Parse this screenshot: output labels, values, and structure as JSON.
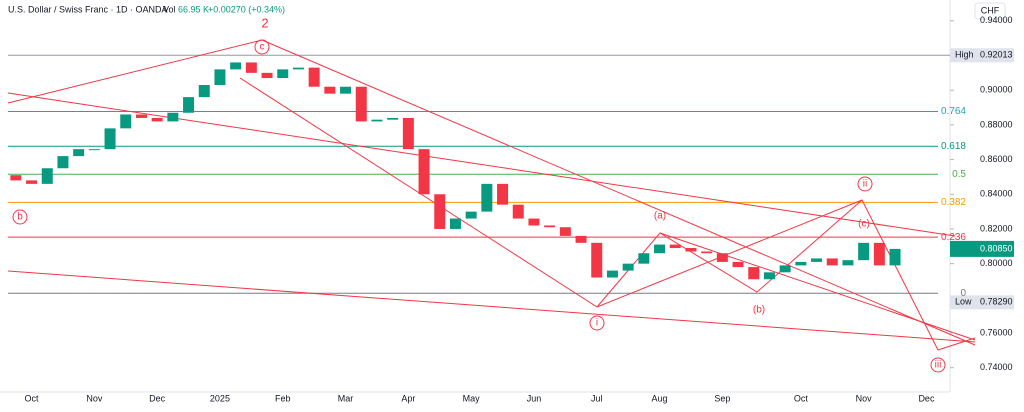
{
  "header": {
    "symbol": "U.S. Dollar / Swiss Franc · 1D · OANDA",
    "vol_label": "Vol",
    "vol": "66.95 K",
    "change": "+0.00270 (+0.34%)",
    "currency": "CHF"
  },
  "chart_data": {
    "type": "candlestick",
    "categories": [
      null,
      "Oct",
      null,
      null,
      null,
      "Nov",
      null,
      null,
      null,
      "Dec",
      null,
      null,
      null,
      "2025",
      null,
      null,
      null,
      "Feb",
      null,
      null,
      null,
      "Mar",
      null,
      null,
      null,
      "Apr",
      null,
      null,
      null,
      "May",
      null,
      null,
      null,
      "Jun",
      null,
      null,
      null,
      "Jul",
      null,
      null,
      null,
      "Aug",
      null,
      null,
      null,
      "Sep",
      null,
      null,
      null,
      null,
      "Oct",
      null,
      null,
      null,
      "Nov",
      null,
      null,
      null,
      "Dec",
      null
    ],
    "open": [
      0.851,
      0.848,
      0.846,
      0.855,
      0.862,
      0.866,
      0.866,
      0.878,
      0.886,
      0.884,
      0.882,
      0.887,
      0.896,
      0.903,
      0.912,
      0.916,
      0.91,
      0.907,
      0.912,
      0.913,
      0.902,
      0.898,
      0.902,
      0.882,
      0.883,
      0.884,
      0.866,
      0.84,
      0.82,
      0.826,
      0.83,
      0.846,
      0.834,
      0.826,
      0.822,
      0.821,
      0.816,
      0.812,
      0.792,
      0.796,
      0.8,
      0.806,
      0.811,
      0.809,
      0.807,
      0.806,
      0.801,
      0.798,
      0.791,
      0.795,
      0.799,
      0.801,
      0.803,
      0.799,
      0.802,
      0.812,
      0.799,
      null,
      null,
      null
    ],
    "close": [
      0.848,
      0.846,
      0.855,
      0.862,
      0.866,
      0.866,
      0.878,
      0.886,
      0.884,
      0.882,
      0.887,
      0.896,
      0.903,
      0.912,
      0.916,
      0.91,
      0.907,
      0.912,
      0.913,
      0.902,
      0.898,
      0.902,
      0.882,
      0.883,
      0.884,
      0.866,
      0.84,
      0.82,
      0.826,
      0.83,
      0.846,
      0.834,
      0.826,
      0.822,
      0.821,
      0.816,
      0.812,
      0.792,
      0.796,
      0.8,
      0.806,
      0.811,
      0.809,
      0.807,
      0.806,
      0.801,
      0.798,
      0.791,
      0.795,
      0.799,
      0.801,
      0.803,
      0.799,
      0.802,
      0.812,
      0.799,
      0.8085,
      null,
      null,
      null
    ],
    "up_color": "#089981",
    "down_color": "#f23645",
    "ylim": [
      0.726,
      0.952
    ],
    "yticks": [
      {
        "value": 0.94,
        "label": "0.94000"
      },
      {
        "value": 0.9,
        "label": "0.90000"
      },
      {
        "value": 0.88,
        "label": "0.88000"
      },
      {
        "value": 0.86,
        "label": "0.86000"
      },
      {
        "value": 0.84,
        "label": "0.84000"
      },
      {
        "value": 0.82,
        "label": "0.82000"
      },
      {
        "value": 0.8,
        "label": "0.80000"
      },
      {
        "value": 0.76,
        "label": "0.76000"
      },
      {
        "value": 0.74,
        "label": "0.74000"
      }
    ],
    "high": {
      "label": "High",
      "value": 0.92013
    },
    "low": {
      "label": "Low",
      "value": 0.7829,
      "value_label": "0.78290"
    },
    "last": {
      "value": 0.8085,
      "value_label": "0.80850"
    },
    "fib_levels": [
      {
        "value": 0.764,
        "color": "#22a2b8"
      },
      {
        "value": 0.618,
        "color": "#089981"
      },
      {
        "value": 0.5,
        "color": "#4caf50"
      },
      {
        "value": 0.382,
        "color": "#ff9800"
      },
      {
        "value": 0.236,
        "color": "#f23645"
      },
      {
        "value": 0,
        "color": "#787b86"
      }
    ],
    "waves": {
      "w2": "2",
      "c": "c",
      "b": "b",
      "a_sub": "(a)",
      "b_sub": "(b)",
      "c_sub": "(c)",
      "i": "i",
      "ii": "ii",
      "iii": "iii"
    }
  }
}
